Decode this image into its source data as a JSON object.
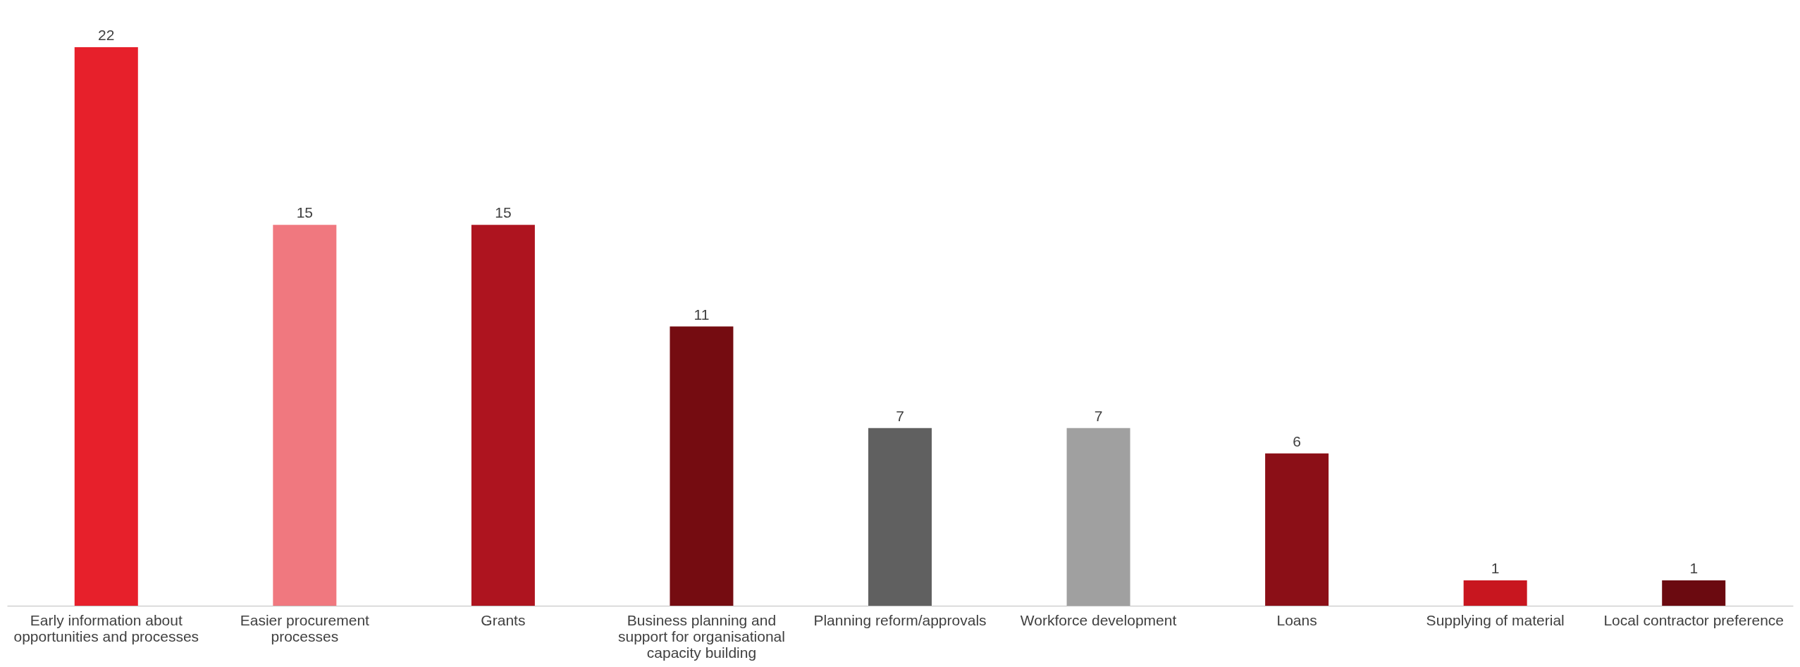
{
  "chart_data": {
    "type": "bar",
    "categories": [
      "Early information about opportunities and processes",
      "Easier procurement processes",
      "Grants",
      "Business planning and support for organisational capacity building",
      "Planning reform/approvals",
      "Workforce development",
      "Loans",
      "Supplying of material",
      "Local contractor preference"
    ],
    "values": [
      22,
      15,
      15,
      11,
      7,
      7,
      6,
      1,
      1
    ],
    "colors": [
      "#e7202b",
      "#f0787f",
      "#ae141f",
      "#750c11",
      "#606060",
      "#a0a0a0",
      "#8b0f17",
      "#c8161f",
      "#6b0a10"
    ],
    "data_labels": true
  }
}
